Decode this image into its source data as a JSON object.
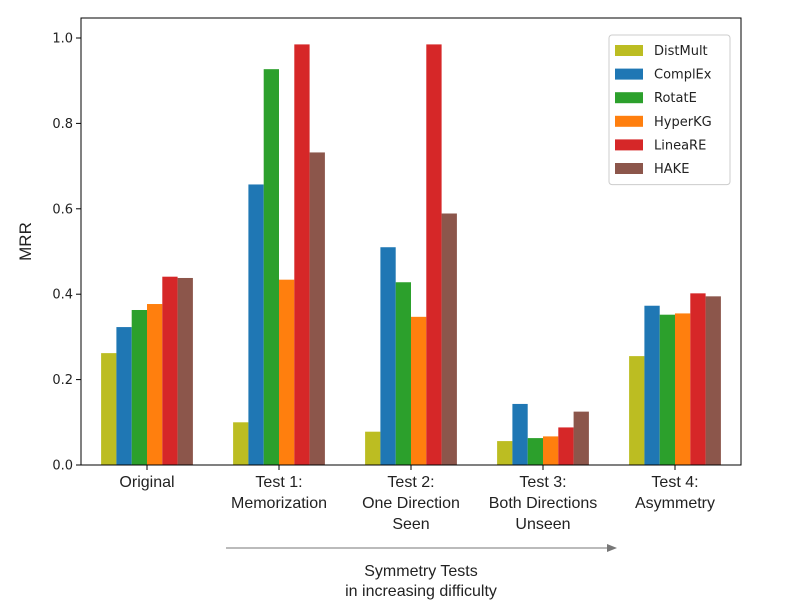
{
  "chart_data": {
    "type": "bar",
    "categories": [
      [
        "Original"
      ],
      [
        "Test 1:",
        "Memorization"
      ],
      [
        "Test 2:",
        "One Direction",
        "Seen"
      ],
      [
        "Test 3:",
        "Both Directions",
        "Unseen"
      ],
      [
        "Test 4:",
        "Asymmetry"
      ]
    ],
    "series": [
      {
        "name": "DistMult",
        "color": "#bcbd22",
        "values": [
          0.262,
          0.1,
          0.078,
          0.056,
          0.255
        ]
      },
      {
        "name": "ComplEx",
        "color": "#1f77b4",
        "values": [
          0.323,
          0.657,
          0.51,
          0.143,
          0.373
        ]
      },
      {
        "name": "RotatE",
        "color": "#2ca02c",
        "values": [
          0.363,
          0.927,
          0.428,
          0.063,
          0.352
        ]
      },
      {
        "name": "HyperKG",
        "color": "#ff7f0e",
        "values": [
          0.377,
          0.434,
          0.347,
          0.067,
          0.355
        ]
      },
      {
        "name": "LineaRE",
        "color": "#d62728",
        "values": [
          0.441,
          0.985,
          0.985,
          0.088,
          0.402
        ]
      },
      {
        "name": "HAKE",
        "color": "#8c564b",
        "values": [
          0.438,
          0.732,
          0.589,
          0.125,
          0.395
        ]
      }
    ],
    "title": "",
    "xlabel": "",
    "ylabel": "MRR",
    "ylim": [
      0,
      1.0
    ],
    "yticks": [
      "0.0",
      "0.2",
      "0.4",
      "0.6",
      "0.8",
      "1.0"
    ],
    "legend_position": "top-right",
    "grid": false,
    "annotation": {
      "lines": [
        "Symmetry Tests",
        "in increasing difficulty"
      ],
      "arrow_direction": "right"
    }
  }
}
